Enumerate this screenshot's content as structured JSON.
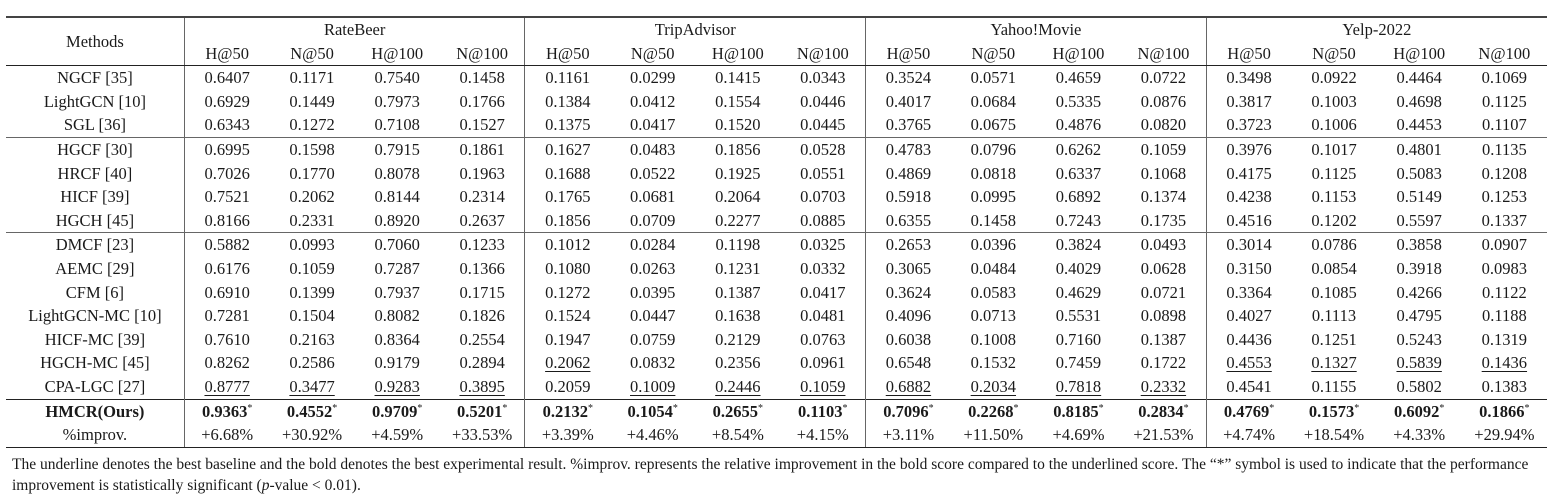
{
  "table": {
    "methods_header": "Methods",
    "datasets": [
      "RateBeer",
      "TripAdvisor",
      "Yahoo!Movie",
      "Yelp-2022"
    ],
    "metrics": [
      "H@50",
      "N@50",
      "H@100",
      "N@100"
    ],
    "groups": [
      {
        "rows": [
          {
            "method": "NGCF [35]",
            "values": [
              "0.6407",
              "0.1171",
              "0.7540",
              "0.1458",
              "0.1161",
              "0.0299",
              "0.1415",
              "0.0343",
              "0.3524",
              "0.0571",
              "0.4659",
              "0.0722",
              "0.3498",
              "0.0922",
              "0.4464",
              "0.1069"
            ]
          },
          {
            "method": "LightGCN [10]",
            "values": [
              "0.6929",
              "0.1449",
              "0.7973",
              "0.1766",
              "0.1384",
              "0.0412",
              "0.1554",
              "0.0446",
              "0.4017",
              "0.0684",
              "0.5335",
              "0.0876",
              "0.3817",
              "0.1003",
              "0.4698",
              "0.1125"
            ]
          },
          {
            "method": "SGL [36]",
            "values": [
              "0.6343",
              "0.1272",
              "0.7108",
              "0.1527",
              "0.1375",
              "0.0417",
              "0.1520",
              "0.0445",
              "0.3765",
              "0.0675",
              "0.4876",
              "0.0820",
              "0.3723",
              "0.1006",
              "0.4453",
              "0.1107"
            ]
          }
        ]
      },
      {
        "rows": [
          {
            "method": "HGCF [30]",
            "values": [
              "0.6995",
              "0.1598",
              "0.7915",
              "0.1861",
              "0.1627",
              "0.0483",
              "0.1856",
              "0.0528",
              "0.4783",
              "0.0796",
              "0.6262",
              "0.1059",
              "0.3976",
              "0.1017",
              "0.4801",
              "0.1135"
            ]
          },
          {
            "method": "HRCF [40]",
            "values": [
              "0.7026",
              "0.1770",
              "0.8078",
              "0.1963",
              "0.1688",
              "0.0522",
              "0.1925",
              "0.0551",
              "0.4869",
              "0.0818",
              "0.6337",
              "0.1068",
              "0.4175",
              "0.1125",
              "0.5083",
              "0.1208"
            ]
          },
          {
            "method": "HICF [39]",
            "values": [
              "0.7521",
              "0.2062",
              "0.8144",
              "0.2314",
              "0.1765",
              "0.0681",
              "0.2064",
              "0.0703",
              "0.5918",
              "0.0995",
              "0.6892",
              "0.1374",
              "0.4238",
              "0.1153",
              "0.5149",
              "0.1253"
            ]
          },
          {
            "method": "HGCH [45]",
            "values": [
              "0.8166",
              "0.2331",
              "0.8920",
              "0.2637",
              "0.1856",
              "0.0709",
              "0.2277",
              "0.0885",
              "0.6355",
              "0.1458",
              "0.7243",
              "0.1735",
              "0.4516",
              "0.1202",
              "0.5597",
              "0.1337"
            ]
          }
        ]
      },
      {
        "rows": [
          {
            "method": "DMCF [23]",
            "values": [
              "0.5882",
              "0.0993",
              "0.7060",
              "0.1233",
              "0.1012",
              "0.0284",
              "0.1198",
              "0.0325",
              "0.2653",
              "0.0396",
              "0.3824",
              "0.0493",
              "0.3014",
              "0.0786",
              "0.3858",
              "0.0907"
            ]
          },
          {
            "method": "AEMC [29]",
            "values": [
              "0.6176",
              "0.1059",
              "0.7287",
              "0.1366",
              "0.1080",
              "0.0263",
              "0.1231",
              "0.0332",
              "0.3065",
              "0.0484",
              "0.4029",
              "0.0628",
              "0.3150",
              "0.0854",
              "0.3918",
              "0.0983"
            ]
          },
          {
            "method": "CFM [6]",
            "values": [
              "0.6910",
              "0.1399",
              "0.7937",
              "0.1715",
              "0.1272",
              "0.0395",
              "0.1387",
              "0.0417",
              "0.3624",
              "0.0583",
              "0.4629",
              "0.0721",
              "0.3364",
              "0.1085",
              "0.4266",
              "0.1122"
            ]
          },
          {
            "method": "LightGCN-MC [10]",
            "values": [
              "0.7281",
              "0.1504",
              "0.8082",
              "0.1826",
              "0.1524",
              "0.0447",
              "0.1638",
              "0.0481",
              "0.4096",
              "0.0713",
              "0.5531",
              "0.0898",
              "0.4027",
              "0.1113",
              "0.4795",
              "0.1188"
            ]
          },
          {
            "method": "HICF-MC [39]",
            "values": [
              "0.7610",
              "0.2163",
              "0.8364",
              "0.2554",
              "0.1947",
              "0.0759",
              "0.2129",
              "0.0763",
              "0.6038",
              "0.1008",
              "0.7160",
              "0.1387",
              "0.4436",
              "0.1251",
              "0.5243",
              "0.1319"
            ]
          },
          {
            "method": "HGCH-MC [45]",
            "values": [
              "0.8262",
              "0.2586",
              "0.9179",
              "0.2894",
              "0.2062",
              "0.0832",
              "0.2356",
              "0.0961",
              "0.6548",
              "0.1532",
              "0.7459",
              "0.1722",
              "0.4553",
              "0.1327",
              "0.5839",
              "0.1436"
            ]
          },
          {
            "method": "CPA-LGC [27]",
            "values": [
              "0.8777",
              "0.3477",
              "0.9283",
              "0.3895",
              "0.2059",
              "0.1009",
              "0.2446",
              "0.1059",
              "0.6882",
              "0.2034",
              "0.7818",
              "0.2332",
              "0.4541",
              "0.1155",
              "0.5802",
              "0.1383"
            ]
          }
        ]
      }
    ],
    "ours": {
      "method": "HMCR(Ours)",
      "values": [
        "0.9363",
        "0.4552",
        "0.9709",
        "0.5201",
        "0.2132",
        "0.1054",
        "0.2655",
        "0.1103",
        "0.7096",
        "0.2268",
        "0.8185",
        "0.2834",
        "0.4769",
        "0.1573",
        "0.6092",
        "0.1866"
      ],
      "mark": "*"
    },
    "improv": {
      "method": "%improv.",
      "values": [
        "+6.68%",
        "+30.92%",
        "+4.59%",
        "+33.53%",
        "+3.39%",
        "+4.46%",
        "+8.54%",
        "+4.15%",
        "+3.11%",
        "+11.50%",
        "+4.69%",
        "+21.53%",
        "+4.74%",
        "+18.54%",
        "+4.33%",
        "+29.94%"
      ]
    },
    "underlined": {
      "HGCH-MC [45]": [
        4,
        12,
        13,
        14,
        15
      ],
      "CPA-LGC [27]": [
        0,
        1,
        2,
        3,
        5,
        6,
        7,
        8,
        9,
        10,
        11
      ]
    }
  },
  "caption": {
    "part1": "The underline denotes the best baseline and the bold denotes the best experimental result. %improv. represents the relative improvement in the bold score compared to the underlined score. The “*” symbol is used to indicate that the performance improvement is statistically significant (",
    "p": "p",
    "part2": "-value < 0.01)."
  }
}
